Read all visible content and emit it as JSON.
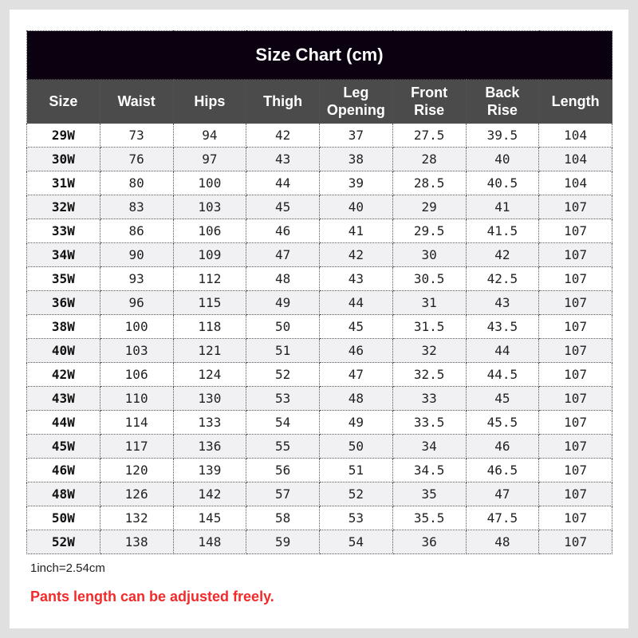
{
  "title": "Size Chart  (cm)",
  "headers": [
    "Size",
    "Waist",
    "Hips",
    "Thigh",
    "Leg\nOpening",
    "Front\nRise",
    "Back\nRise",
    "Length"
  ],
  "rows": [
    [
      "29W",
      "73",
      "94",
      "42",
      "37",
      "27.5",
      "39.5",
      "104"
    ],
    [
      "30W",
      "76",
      "97",
      "43",
      "38",
      "28",
      "40",
      "104"
    ],
    [
      "31W",
      "80",
      "100",
      "44",
      "39",
      "28.5",
      "40.5",
      "104"
    ],
    [
      "32W",
      "83",
      "103",
      "45",
      "40",
      "29",
      "41",
      "107"
    ],
    [
      "33W",
      "86",
      "106",
      "46",
      "41",
      "29.5",
      "41.5",
      "107"
    ],
    [
      "34W",
      "90",
      "109",
      "47",
      "42",
      "30",
      "42",
      "107"
    ],
    [
      "35W",
      "93",
      "112",
      "48",
      "43",
      "30.5",
      "42.5",
      "107"
    ],
    [
      "36W",
      "96",
      "115",
      "49",
      "44",
      "31",
      "43",
      "107"
    ],
    [
      "38W",
      "100",
      "118",
      "50",
      "45",
      "31.5",
      "43.5",
      "107"
    ],
    [
      "40W",
      "103",
      "121",
      "51",
      "46",
      "32",
      "44",
      "107"
    ],
    [
      "42W",
      "106",
      "124",
      "52",
      "47",
      "32.5",
      "44.5",
      "107"
    ],
    [
      "43W",
      "110",
      "130",
      "53",
      "48",
      "33",
      "45",
      "107"
    ],
    [
      "44W",
      "114",
      "133",
      "54",
      "49",
      "33.5",
      "45.5",
      "107"
    ],
    [
      "45W",
      "117",
      "136",
      "55",
      "50",
      "34",
      "46",
      "107"
    ],
    [
      "46W",
      "120",
      "139",
      "56",
      "51",
      "34.5",
      "46.5",
      "107"
    ],
    [
      "48W",
      "126",
      "142",
      "57",
      "52",
      "35",
      "47",
      "107"
    ],
    [
      "50W",
      "132",
      "145",
      "58",
      "53",
      "35.5",
      "47.5",
      "107"
    ],
    [
      "52W",
      "138",
      "148",
      "59",
      "54",
      "36",
      "48",
      "107"
    ]
  ],
  "note": "1inch=2.54cm",
  "warning": "Pants length can be adjusted freely.",
  "colors": {
    "title_bg": "#0a0010",
    "header_bg": "#4b4b4b",
    "warning": "#f22a2a"
  }
}
